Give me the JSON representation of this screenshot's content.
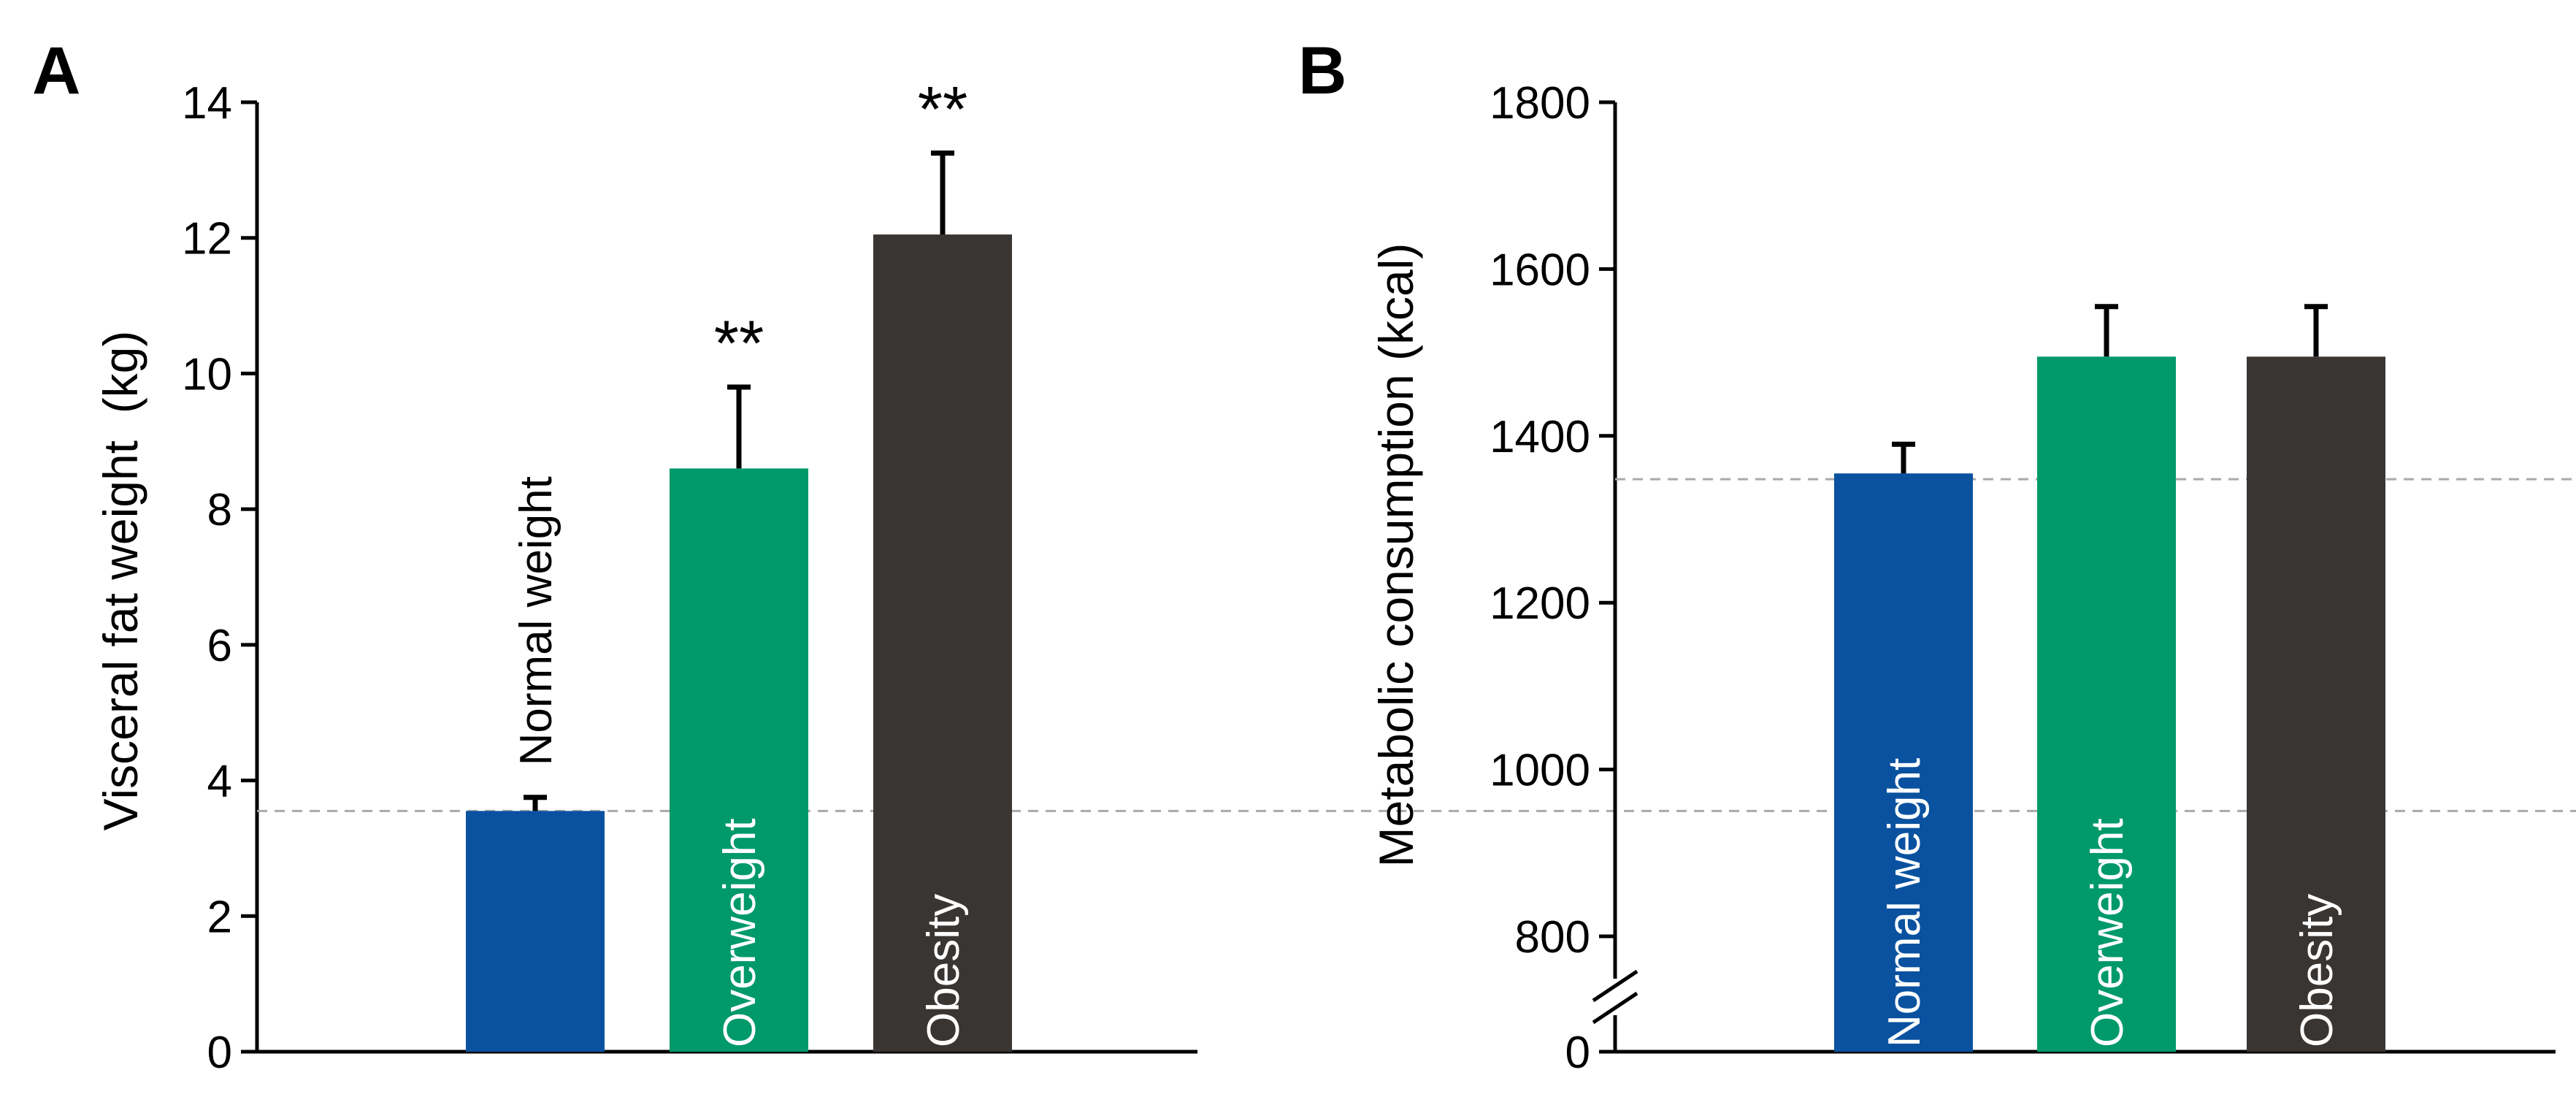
{
  "colors": {
    "normal": "#0a52a0",
    "over": "#00996a",
    "obese": "#393533",
    "reference": "#a9a9a9"
  },
  "chart_data": [
    {
      "panel": "A",
      "type": "bar",
      "ylabel": "Visceral fat weight  (kg)",
      "xlabel": "",
      "ylim": [
        0,
        14
      ],
      "yticks": [
        0,
        2,
        4,
        6,
        8,
        10,
        12,
        14
      ],
      "categories": [
        "Normal weight",
        "Overweight",
        "Obesity"
      ],
      "values": [
        3.55,
        8.6,
        12.05
      ],
      "errors": [
        0.2,
        1.2,
        1.2
      ],
      "significance": [
        "",
        "**",
        "**"
      ],
      "reference_line": 3.55
    },
    {
      "panel": "B",
      "type": "bar",
      "ylabel": "Metabolic consumption (kcal)",
      "xlabel": "",
      "ylim": [
        0,
        1800
      ],
      "axis_break": [
        0,
        700
      ],
      "yticks": [
        0,
        800,
        1000,
        1200,
        1400,
        1600,
        1800
      ],
      "categories": [
        "Normal weight",
        "Overweight",
        "Obesity"
      ],
      "values": [
        1355,
        1495,
        1495
      ],
      "errors": [
        35,
        60,
        60
      ],
      "significance": [
        "",
        "",
        ""
      ],
      "reference_line": 1348
    }
  ]
}
